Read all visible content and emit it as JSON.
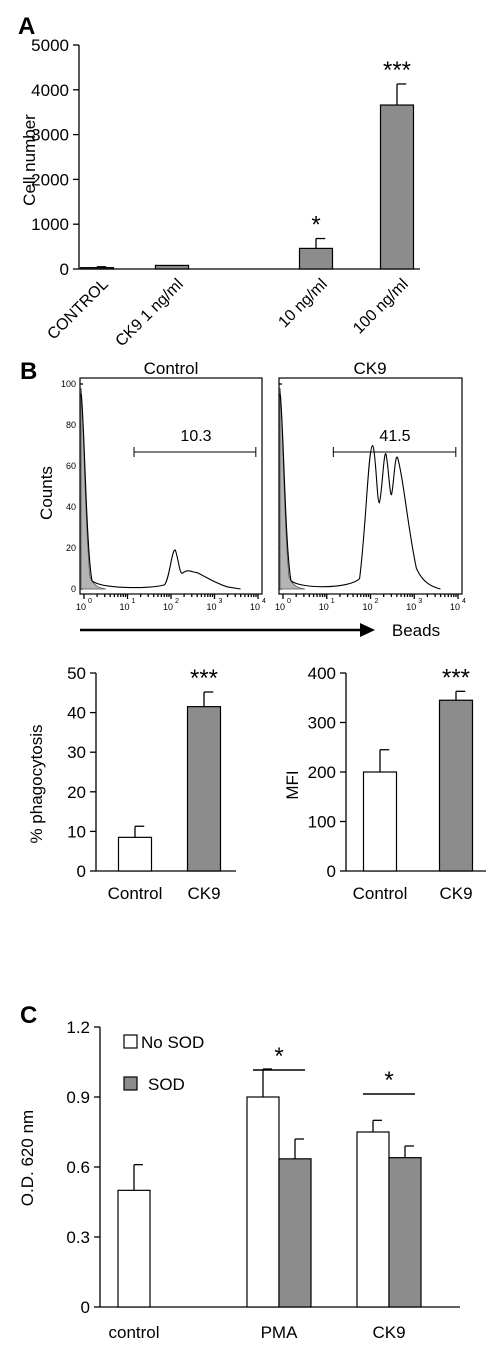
{
  "panel_labels": [
    "A",
    "B",
    "C"
  ],
  "colors": {
    "grey_bar": "#8c8c8c",
    "white_bar": "#ffffff",
    "flow_fill": "#b4b4b4",
    "ink": "#000000"
  },
  "chart_data": [
    {
      "id": "A",
      "type": "bar",
      "title": "",
      "ylabel": "Cell number",
      "xlabel": "",
      "ylim": [
        0,
        5000
      ],
      "yticks": [
        "0",
        "1000",
        "2000",
        "3000",
        "4000",
        "5000"
      ],
      "categories": [
        "CONTROL",
        "CK9 1 ng/ml",
        "10 ng/ml",
        "100 ng/ml"
      ],
      "values": [
        30,
        80,
        460,
        3660
      ],
      "errors": [
        20,
        0,
        220,
        470
      ],
      "significance": [
        "",
        "",
        "*",
        "***"
      ],
      "grid": false
    },
    {
      "id": "B-flow",
      "type": "area",
      "ylabel": "Counts",
      "xlabel": "Beads",
      "ylim": [
        0,
        100
      ],
      "yticks": [
        "0",
        "20",
        "40",
        "60",
        "80",
        "100"
      ],
      "xticks": [
        "10",
        "10",
        "10",
        "10",
        "10"
      ],
      "xtick_exponents": [
        "0",
        "1",
        "2",
        "3",
        "4"
      ],
      "xscale": "log",
      "histograms": [
        {
          "name": "Control",
          "gate_label": "10.3"
        },
        {
          "name": "CK9",
          "gate_label": "41.5"
        }
      ]
    },
    {
      "id": "B-phago",
      "type": "bar",
      "ylabel": "% phagocytosis",
      "ylim": [
        0,
        50
      ],
      "yticks": [
        "0",
        "10",
        "20",
        "30",
        "40",
        "50"
      ],
      "categories": [
        "Control",
        "CK9"
      ],
      "values": [
        8.5,
        41.5
      ],
      "errors": [
        2.8,
        3.7
      ],
      "significance": [
        "",
        "***"
      ]
    },
    {
      "id": "B-mfi",
      "type": "bar",
      "ylabel": "MFI",
      "ylim": [
        0,
        400
      ],
      "yticks": [
        "0",
        "100",
        "200",
        "300",
        "400"
      ],
      "categories": [
        "Control",
        "CK9"
      ],
      "values": [
        200,
        345
      ],
      "errors": [
        45,
        18
      ],
      "significance": [
        "",
        "***"
      ]
    },
    {
      "id": "C",
      "type": "bar",
      "ylabel": "O.D. 620 nm",
      "ylim": [
        0,
        1.2
      ],
      "yticks": [
        "0",
        "0.3",
        "0.6",
        "0.9",
        "1.2"
      ],
      "categories": [
        "control",
        "PMA",
        "CK9"
      ],
      "series": [
        {
          "name": "No SOD",
          "values": [
            0.5,
            0.9,
            0.75
          ],
          "errors": [
            0.11,
            0.12,
            0.05
          ]
        },
        {
          "name": "SOD",
          "values": [
            null,
            0.635,
            0.64
          ],
          "errors": [
            null,
            0.085,
            0.05
          ]
        }
      ],
      "significance": [
        "",
        "*",
        "*"
      ],
      "legend_position": "top-left"
    }
  ]
}
